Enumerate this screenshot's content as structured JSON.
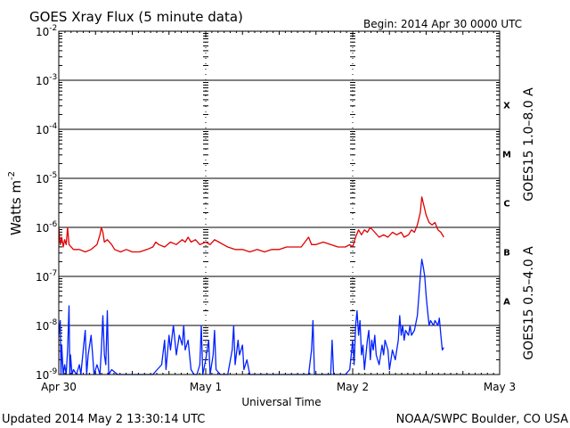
{
  "chart_data": {
    "type": "line",
    "title": "GOES Xray Flux (5 minute data)",
    "begin_text": "Begin:  2014 Apr 30 0000 UTC",
    "ylabel_main": "Watts m",
    "ylabel_sup": "-2",
    "xlabel": "Universal Time",
    "x_tick_labels": [
      "Apr 30",
      "May 1",
      "May 2",
      "May 3"
    ],
    "y_scale": "log",
    "ylim": [
      1e-09,
      0.01
    ],
    "y_ticks": [
      {
        "base": "10",
        "exp": "-9"
      },
      {
        "base": "10",
        "exp": "-8"
      },
      {
        "base": "10",
        "exp": "-7"
      },
      {
        "base": "10",
        "exp": "-6"
      },
      {
        "base": "10",
        "exp": "-5"
      },
      {
        "base": "10",
        "exp": "-4"
      },
      {
        "base": "10",
        "exp": "-3"
      },
      {
        "base": "10",
        "exp": "-2"
      }
    ],
    "xlim_days": [
      0,
      3
    ],
    "grid": "horizontal at each decade",
    "flare_classes": [
      {
        "label": "A",
        "exp": -7.5
      },
      {
        "label": "B",
        "exp": -6.5
      },
      {
        "label": "C",
        "exp": -5.5
      },
      {
        "label": "M",
        "exp": -4.5
      },
      {
        "label": "X",
        "exp": -3.5
      }
    ],
    "series": [
      {
        "name": "GOES15 1.0–8.0 A",
        "color": "#e00000",
        "points": [
          [
            0.0,
            -6.0
          ],
          [
            0.01,
            -6.35
          ],
          [
            0.02,
            -6.2
          ],
          [
            0.03,
            -6.4
          ],
          [
            0.04,
            -6.25
          ],
          [
            0.05,
            -6.35
          ],
          [
            0.06,
            -6.0
          ],
          [
            0.07,
            -6.35
          ],
          [
            0.1,
            -6.45
          ],
          [
            0.14,
            -6.45
          ],
          [
            0.18,
            -6.5
          ],
          [
            0.22,
            -6.45
          ],
          [
            0.26,
            -6.35
          ],
          [
            0.28,
            -6.15
          ],
          [
            0.29,
            -6.0
          ],
          [
            0.3,
            -6.1
          ],
          [
            0.31,
            -6.3
          ],
          [
            0.33,
            -6.25
          ],
          [
            0.36,
            -6.35
          ],
          [
            0.38,
            -6.45
          ],
          [
            0.42,
            -6.5
          ],
          [
            0.46,
            -6.45
          ],
          [
            0.5,
            -6.5
          ],
          [
            0.55,
            -6.5
          ],
          [
            0.6,
            -6.45
          ],
          [
            0.64,
            -6.4
          ],
          [
            0.66,
            -6.3
          ],
          [
            0.68,
            -6.35
          ],
          [
            0.72,
            -6.4
          ],
          [
            0.76,
            -6.3
          ],
          [
            0.8,
            -6.35
          ],
          [
            0.84,
            -6.25
          ],
          [
            0.86,
            -6.3
          ],
          [
            0.88,
            -6.2
          ],
          [
            0.9,
            -6.3
          ],
          [
            0.93,
            -6.25
          ],
          [
            0.96,
            -6.35
          ],
          [
            1.0,
            -6.3
          ],
          [
            1.03,
            -6.35
          ],
          [
            1.06,
            -6.25
          ],
          [
            1.09,
            -6.3
          ],
          [
            1.12,
            -6.35
          ],
          [
            1.15,
            -6.4
          ],
          [
            1.2,
            -6.45
          ],
          [
            1.25,
            -6.45
          ],
          [
            1.3,
            -6.5
          ],
          [
            1.35,
            -6.45
          ],
          [
            1.4,
            -6.5
          ],
          [
            1.45,
            -6.45
          ],
          [
            1.5,
            -6.45
          ],
          [
            1.55,
            -6.4
          ],
          [
            1.6,
            -6.4
          ],
          [
            1.65,
            -6.4
          ],
          [
            1.7,
            -6.2
          ],
          [
            1.72,
            -6.35
          ],
          [
            1.75,
            -6.35
          ],
          [
            1.8,
            -6.3
          ],
          [
            1.85,
            -6.35
          ],
          [
            1.9,
            -6.4
          ],
          [
            1.95,
            -6.4
          ],
          [
            1.98,
            -6.35
          ],
          [
            2.0,
            -6.4
          ],
          [
            2.02,
            -6.2
          ],
          [
            2.04,
            -6.05
          ],
          [
            2.06,
            -6.15
          ],
          [
            2.08,
            -6.05
          ],
          [
            2.1,
            -6.1
          ],
          [
            2.12,
            -6.0
          ],
          [
            2.15,
            -6.1
          ],
          [
            2.18,
            -6.2
          ],
          [
            2.21,
            -6.15
          ],
          [
            2.24,
            -6.2
          ],
          [
            2.27,
            -6.1
          ],
          [
            2.3,
            -6.15
          ],
          [
            2.33,
            -6.1
          ],
          [
            2.35,
            -6.2
          ],
          [
            2.38,
            -6.15
          ],
          [
            2.4,
            -6.05
          ],
          [
            2.42,
            -6.1
          ],
          [
            2.44,
            -5.95
          ],
          [
            2.46,
            -5.7
          ],
          [
            2.47,
            -5.38
          ],
          [
            2.48,
            -5.5
          ],
          [
            2.5,
            -5.75
          ],
          [
            2.52,
            -5.9
          ],
          [
            2.54,
            -5.95
          ],
          [
            2.56,
            -5.9
          ],
          [
            2.58,
            -6.05
          ],
          [
            2.6,
            -6.1
          ],
          [
            2.62,
            -6.2
          ]
        ]
      },
      {
        "name": "GOES15 0.5–4.0 A",
        "color": "#0020ff",
        "points": [
          [
            0.0,
            -8.2
          ],
          [
            0.01,
            -7.9
          ],
          [
            0.015,
            -9.0
          ],
          [
            0.02,
            -8.4
          ],
          [
            0.03,
            -9.0
          ],
          [
            0.04,
            -8.8
          ],
          [
            0.05,
            -9.0
          ],
          [
            0.06,
            -8.5
          ],
          [
            0.07,
            -7.6
          ],
          [
            0.075,
            -9.0
          ],
          [
            0.08,
            -8.6
          ],
          [
            0.09,
            -9.0
          ],
          [
            0.1,
            -8.9
          ],
          [
            0.12,
            -9.0
          ],
          [
            0.14,
            -8.8
          ],
          [
            0.15,
            -9.0
          ],
          [
            0.17,
            -8.4
          ],
          [
            0.18,
            -8.1
          ],
          [
            0.19,
            -9.0
          ],
          [
            0.2,
            -8.6
          ],
          [
            0.22,
            -8.2
          ],
          [
            0.23,
            -8.6
          ],
          [
            0.24,
            -9.0
          ],
          [
            0.26,
            -8.8
          ],
          [
            0.28,
            -9.0
          ],
          [
            0.29,
            -8.5
          ],
          [
            0.3,
            -7.8
          ],
          [
            0.31,
            -8.6
          ],
          [
            0.32,
            -8.8
          ],
          [
            0.33,
            -7.7
          ],
          [
            0.34,
            -9.0
          ],
          [
            0.36,
            -8.9
          ],
          [
            0.4,
            -9.0
          ],
          [
            0.45,
            -9.0
          ],
          [
            0.52,
            -9.0
          ],
          [
            0.58,
            -9.0
          ],
          [
            0.64,
            -9.0
          ],
          [
            0.7,
            -8.8
          ],
          [
            0.72,
            -8.3
          ],
          [
            0.73,
            -8.9
          ],
          [
            0.75,
            -8.2
          ],
          [
            0.76,
            -8.5
          ],
          [
            0.78,
            -8.0
          ],
          [
            0.8,
            -8.6
          ],
          [
            0.82,
            -8.2
          ],
          [
            0.84,
            -8.4
          ],
          [
            0.85,
            -8.0
          ],
          [
            0.86,
            -8.5
          ],
          [
            0.88,
            -8.3
          ],
          [
            0.9,
            -8.9
          ],
          [
            0.92,
            -9.0
          ],
          [
            0.94,
            -9.0
          ],
          [
            0.96,
            -8.8
          ],
          [
            0.97,
            -8.0
          ],
          [
            0.98,
            -9.0
          ],
          [
            1.0,
            -8.7
          ],
          [
            1.02,
            -8.3
          ],
          [
            1.03,
            -9.0
          ],
          [
            1.05,
            -8.6
          ],
          [
            1.06,
            -8.1
          ],
          [
            1.07,
            -8.9
          ],
          [
            1.1,
            -9.0
          ],
          [
            1.15,
            -9.0
          ],
          [
            1.18,
            -8.5
          ],
          [
            1.19,
            -8.0
          ],
          [
            1.2,
            -8.8
          ],
          [
            1.22,
            -8.3
          ],
          [
            1.23,
            -8.6
          ],
          [
            1.25,
            -8.4
          ],
          [
            1.26,
            -8.9
          ],
          [
            1.28,
            -8.7
          ],
          [
            1.3,
            -9.0
          ],
          [
            1.4,
            -9.0
          ],
          [
            1.5,
            -9.0
          ],
          [
            1.55,
            -9.0
          ],
          [
            1.6,
            -9.0
          ],
          [
            1.7,
            -9.0
          ],
          [
            1.72,
            -8.5
          ],
          [
            1.73,
            -7.9
          ],
          [
            1.74,
            -9.0
          ],
          [
            1.8,
            -9.0
          ],
          [
            1.85,
            -9.0
          ],
          [
            1.86,
            -8.3
          ],
          [
            1.87,
            -9.0
          ],
          [
            1.95,
            -9.0
          ],
          [
            1.98,
            -8.9
          ],
          [
            2.0,
            -8.3
          ],
          [
            2.01,
            -8.8
          ],
          [
            2.02,
            -8.0
          ],
          [
            2.03,
            -7.7
          ],
          [
            2.04,
            -8.2
          ],
          [
            2.05,
            -7.9
          ],
          [
            2.06,
            -8.6
          ],
          [
            2.07,
            -8.4
          ],
          [
            2.08,
            -8.9
          ],
          [
            2.1,
            -8.3
          ],
          [
            2.11,
            -8.1
          ],
          [
            2.12,
            -8.7
          ],
          [
            2.13,
            -8.3
          ],
          [
            2.14,
            -8.5
          ],
          [
            2.15,
            -8.2
          ],
          [
            2.16,
            -8.6
          ],
          [
            2.18,
            -8.8
          ],
          [
            2.2,
            -8.4
          ],
          [
            2.21,
            -8.6
          ],
          [
            2.22,
            -8.3
          ],
          [
            2.24,
            -8.5
          ],
          [
            2.25,
            -8.9
          ],
          [
            2.27,
            -8.5
          ],
          [
            2.29,
            -8.7
          ],
          [
            2.31,
            -8.3
          ],
          [
            2.32,
            -7.8
          ],
          [
            2.33,
            -8.2
          ],
          [
            2.34,
            -8.0
          ],
          [
            2.35,
            -8.3
          ],
          [
            2.36,
            -8.1
          ],
          [
            2.38,
            -8.2
          ],
          [
            2.39,
            -8.0
          ],
          [
            2.4,
            -8.2
          ],
          [
            2.42,
            -8.1
          ],
          [
            2.44,
            -7.8
          ],
          [
            2.45,
            -7.4
          ],
          [
            2.46,
            -7.0
          ],
          [
            2.47,
            -6.65
          ],
          [
            2.48,
            -6.8
          ],
          [
            2.49,
            -7.0
          ],
          [
            2.5,
            -7.4
          ],
          [
            2.51,
            -7.7
          ],
          [
            2.52,
            -8.0
          ],
          [
            2.53,
            -7.9
          ],
          [
            2.55,
            -8.0
          ],
          [
            2.56,
            -7.9
          ],
          [
            2.58,
            -8.0
          ],
          [
            2.59,
            -7.85
          ],
          [
            2.6,
            -8.2
          ],
          [
            2.61,
            -8.5
          ],
          [
            2.62,
            -8.45
          ]
        ]
      }
    ]
  },
  "footer": {
    "updated": "Updated 2014 May  2 13:30:14 UTC",
    "credit": "NOAA/SWPC Boulder, CO USA"
  }
}
